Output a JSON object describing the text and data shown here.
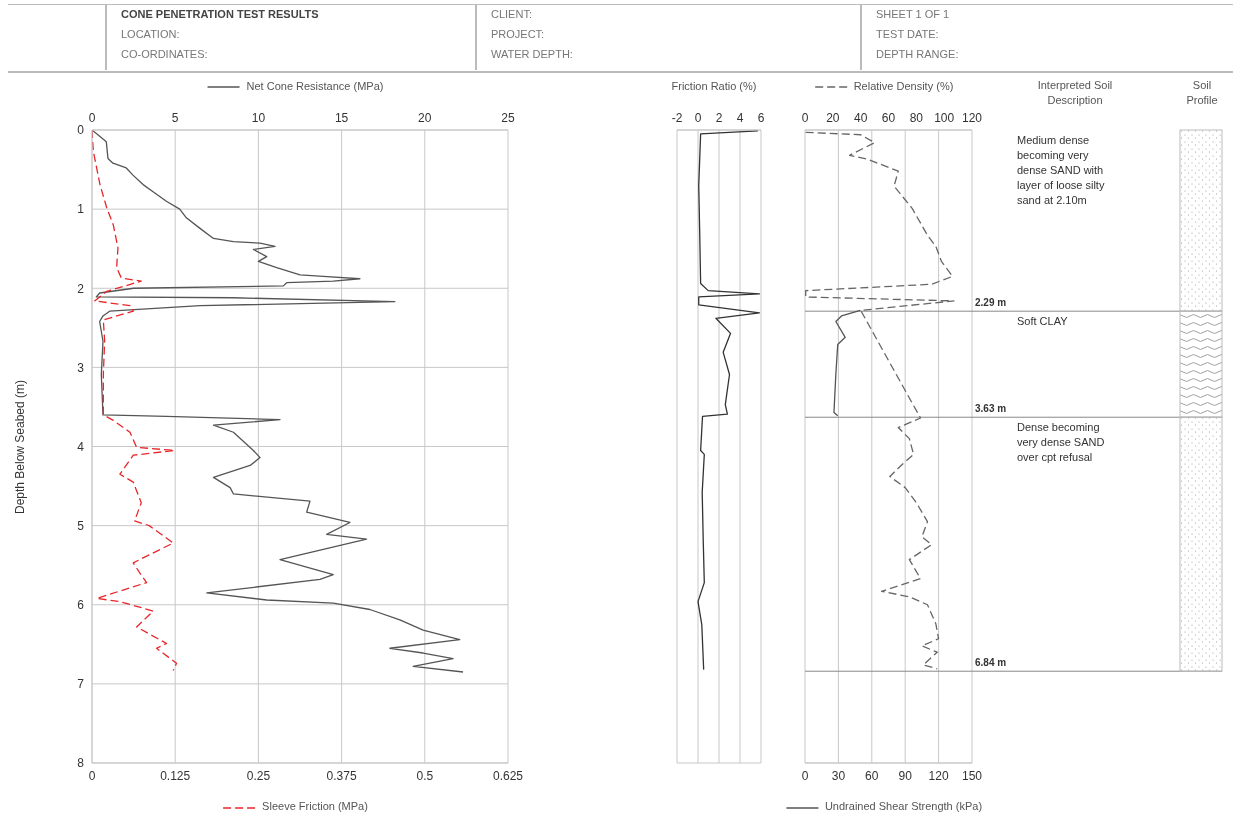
{
  "chart_data": [
    {
      "type": "other",
      "title": "CONE PENETRATION TEST RESULTS",
      "annotations": [
        "LOCATION:",
        "CO-ORDINATES:",
        "CLIENT:",
        "PROJECT:",
        "WATER DEPTH:",
        "SHEET 1 OF 1",
        "TEST DATE:",
        "DEPTH RANGE:"
      ]
    },
    {
      "type": "line",
      "ylabel": "Depth Below Seabed (m)",
      "xlabel": "Sleeve Friction (MPa)",
      "ylim": [
        8,
        0
      ],
      "yticks": [
        0,
        1,
        2,
        3,
        4,
        5,
        6,
        7,
        8
      ],
      "xlim": [
        0,
        0.625
      ],
      "xticks": [
        0,
        0.125,
        0.25,
        0.375,
        0.5,
        0.625
      ],
      "x2lim": [
        0,
        25
      ],
      "x2ticks": [
        0,
        5,
        10,
        15,
        20,
        25
      ],
      "grid": true,
      "marker": "none",
      "legend": "top",
      "series": [
        {
          "name": "Net Cone Resistance (MPa)",
          "color": "#555555",
          "axis": "x2",
          "line_style": "solid",
          "x": [
            0,
            0.46,
            0.86,
            0.96,
            1.26,
            2.06,
            2.46,
            3.07,
            3.67,
            4.47,
            5.27,
            5.67,
            6.47,
            7.3,
            8.5,
            10.1,
            11.0,
            9.7,
            10.5,
            10.0,
            11.1,
            12.5,
            13.9,
            16.1,
            14.5,
            11.7,
            11.5,
            2.5,
            0.46,
            0.26,
            8.5,
            18.2,
            6.5,
            1.06,
            0.66,
            0.46,
            0.66,
            0.56,
            0.66,
            4.47,
            11.3,
            7.3,
            8.5,
            9.7,
            10.1,
            9.5,
            7.3,
            8.3,
            8.5,
            13.1,
            12.9,
            15.5,
            14.1,
            16.5,
            11.3,
            14.5,
            13.7,
            6.9,
            10.5,
            14.5,
            16.7,
            18.5,
            19.9,
            22.1,
            17.9,
            19.9,
            21.7,
            19.3,
            22.3
          ],
          "values": [
            0,
            0.08,
            0.15,
            0.36,
            0.42,
            0.48,
            0.57,
            0.69,
            0.78,
            0.9,
            1.0,
            1.11,
            1.24,
            1.37,
            1.41,
            1.43,
            1.47,
            1.51,
            1.6,
            1.66,
            1.74,
            1.83,
            1.85,
            1.88,
            1.91,
            1.93,
            1.97,
            2.0,
            2.06,
            2.11,
            2.12,
            2.17,
            2.22,
            2.29,
            2.35,
            2.42,
            2.67,
            3.09,
            3.6,
            3.62,
            3.66,
            3.73,
            3.82,
            4.05,
            4.14,
            4.24,
            4.39,
            4.52,
            4.6,
            4.69,
            4.83,
            4.96,
            5.11,
            5.17,
            5.43,
            5.62,
            5.68,
            5.85,
            5.94,
            5.98,
            6.06,
            6.19,
            6.32,
            6.44,
            6.55,
            6.61,
            6.68,
            6.78,
            6.85
          ]
        },
        {
          "color": "#e8262a",
          "line_style": "dashed",
          "x": [
            0,
            0.002,
            0.012,
            0.022,
            0.032,
            0.039,
            0.037,
            0.044,
            0.074,
            0.022,
            0.004,
            0.057,
            0.062,
            0.017,
            0.019,
            0.017,
            0.017,
            0.032,
            0.057,
            0.067,
            0.124,
            0.062,
            0.042,
            0.062,
            0.074,
            0.064,
            0.086,
            0.122,
            0.062,
            0.072,
            0.082,
            0.007,
            0.042,
            0.092,
            0.067,
            0.112,
            0.097,
            0.127,
            0.122
          ],
          "values": [
            0,
            0.27,
            0.69,
            0.98,
            1.2,
            1.49,
            1.74,
            1.87,
            1.91,
            2.04,
            2.16,
            2.22,
            2.29,
            2.4,
            2.67,
            3.09,
            3.6,
            3.67,
            3.82,
            4.01,
            4.05,
            4.11,
            4.35,
            4.45,
            4.71,
            4.94,
            5.0,
            5.22,
            5.47,
            5.6,
            5.72,
            5.92,
            5.96,
            6.08,
            6.28,
            6.49,
            6.55,
            6.74,
            6.83
          ]
        }
      ]
    },
    {
      "type": "line",
      "xlabel": "Friction Ratio (%)",
      "ylim": [
        8,
        0
      ],
      "yticks": [
        0,
        1,
        2,
        3,
        4,
        5,
        6,
        7,
        8
      ],
      "xlim": [
        -2,
        6
      ],
      "xticks": [
        -2,
        0,
        2,
        4,
        6
      ],
      "grid": true,
      "tick_labels": "x",
      "marker": "none",
      "series": [
        {
          "color": "#333333",
          "line_style": "solid",
          "x": [
            5.7,
            0.25,
            0.07,
            0.18,
            0.25,
            0.97,
            5.85,
            0.07,
            0.07,
            5.85,
            1.7,
            3.1,
            2.4,
            3.0,
            2.6,
            2.8,
            0.43,
            0.25,
            0.6,
            0.4,
            0.5,
            0.6,
            0.0,
            0.36,
            0.54
          ],
          "values": [
            0.01,
            0.05,
            0.7,
            1.42,
            1.94,
            2.03,
            2.07,
            2.11,
            2.21,
            2.31,
            2.38,
            2.57,
            2.81,
            3.09,
            3.47,
            3.59,
            3.62,
            4.05,
            4.1,
            4.58,
            5.2,
            5.72,
            5.96,
            6.25,
            6.82
          ]
        }
      ]
    },
    {
      "type": "line",
      "xlabel": "Undrained Shear Strength (kPa)",
      "ylim": [
        8,
        0
      ],
      "yticks": [
        0,
        1,
        2,
        3,
        4,
        5,
        6,
        7,
        8
      ],
      "xlim": [
        0,
        150
      ],
      "xticks": [
        0,
        30,
        60,
        90,
        120,
        150
      ],
      "x2lim": [
        0,
        120
      ],
      "x2ticks": [
        0,
        20,
        40,
        60,
        80,
        100,
        120
      ],
      "grid": true,
      "tick_labels": "x",
      "marker": "none",
      "legend": "top",
      "ref_lines": [
        {
          "axis": "y",
          "value": 2.29,
          "label": "2.29 m",
          "color": "#888888"
        },
        {
          "axis": "y",
          "value": 3.63,
          "label": "3.63 m",
          "color": "#888888"
        },
        {
          "axis": "y",
          "value": 6.84,
          "label": "6.84 m",
          "color": "#888888"
        }
      ],
      "annotations": [
        "Interpreted Soil Description",
        "Soil Profile",
        "Medium dense becoming very dense SAND with layer of loose silty sand at 2.10m",
        "Soft CLAY",
        "Dense becoming very dense SAND over cpt refusal"
      ],
      "series": [
        {
          "name": "Relative Density (%)",
          "color": "#666666",
          "axis": "x2",
          "line_style": "dashed",
          "x": [
            0.5,
            40,
            50,
            32,
            45,
            67,
            64,
            77,
            88,
            94,
            98,
            106,
            91,
            0.5,
            0.5,
            107,
            40,
            null,
            83,
            67,
            75,
            78,
            69,
            61,
            72,
            80,
            88,
            84,
            91,
            75,
            78,
            83,
            55,
            75,
            88,
            94,
            96,
            84,
            95,
            85,
            95
          ],
          "values": [
            0.03,
            0.06,
            0.16,
            0.32,
            0.37,
            0.52,
            0.71,
            0.99,
            1.33,
            1.47,
            1.66,
            1.85,
            1.95,
            2.03,
            2.11,
            2.16,
            2.28,
            null,
            3.64,
            3.76,
            3.9,
            4.1,
            4.24,
            4.38,
            4.52,
            4.71,
            4.95,
            5.14,
            5.24,
            5.43,
            5.52,
            5.67,
            5.83,
            5.9,
            6.0,
            6.24,
            6.43,
            6.52,
            6.6,
            6.76,
            6.81
          ]
        },
        {
          "color": "#555555",
          "line_style": "solid",
          "x": [
            49.7,
            32.8,
            27.7,
            36.1,
            29.4,
            27.7,
            26,
            29.4
          ],
          "values": [
            2.28,
            2.35,
            2.42,
            2.62,
            2.71,
            3.09,
            3.57,
            3.61
          ]
        }
      ]
    }
  ]
}
